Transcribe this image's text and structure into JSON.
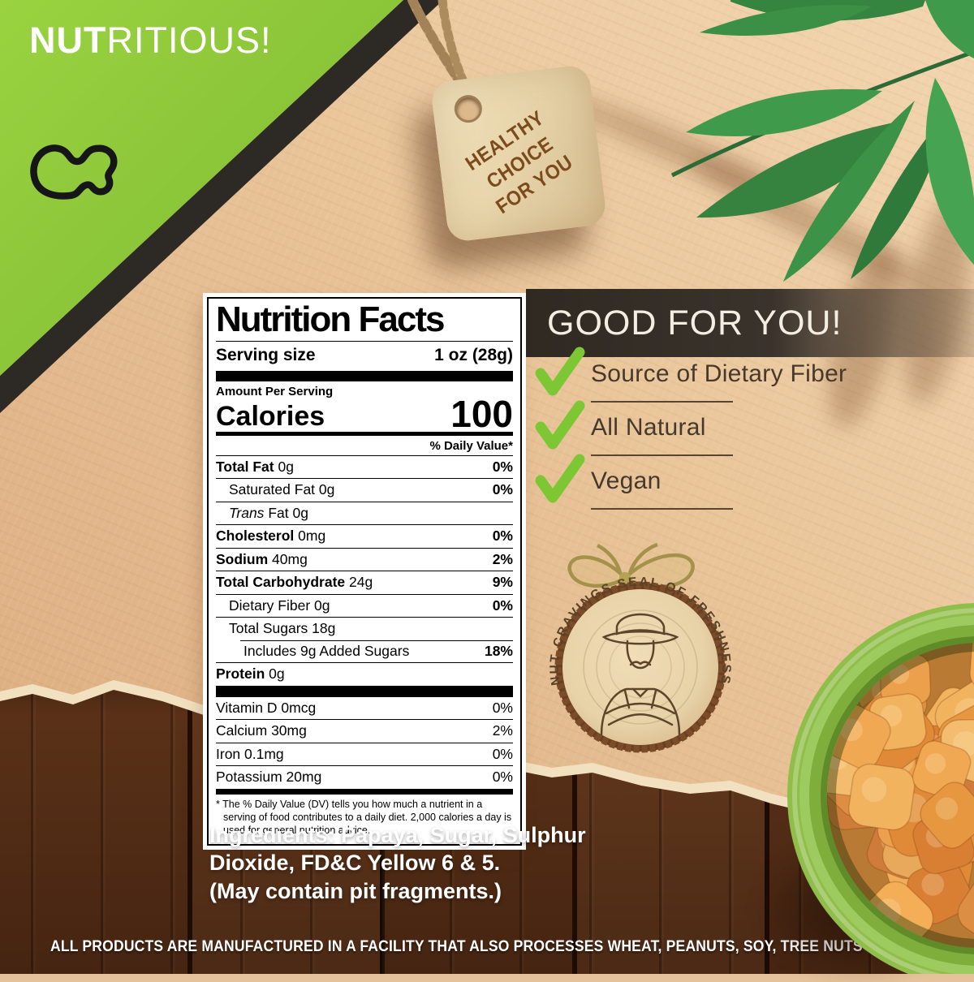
{
  "brand": {
    "headline_bold": "NUT",
    "headline_rest": "RITIOUS!",
    "logo": "nut-cravings-squiggle-logo"
  },
  "hang_tag": {
    "line1": "HEALTHY CHOICE",
    "line2": "FOR YOU"
  },
  "nutrition_label": {
    "title": "Nutrition Facts",
    "serving_size_label": "Serving size",
    "serving_size_value": "1 oz (28g)",
    "amount_per_serving": "Amount Per Serving",
    "calories_label": "Calories",
    "calories_value": "100",
    "daily_value_header": "% Daily Value*",
    "rows": [
      {
        "name": "Total Fat",
        "amount": "0g",
        "dv": "0%",
        "bold": true,
        "indent": 0
      },
      {
        "name": "Saturated Fat",
        "amount": "0g",
        "dv": "0%",
        "bold": false,
        "indent": 1
      },
      {
        "name": "Fat",
        "amount": "0g",
        "dv": "",
        "bold": false,
        "indent": 1,
        "italic_prefix": "Trans"
      },
      {
        "name": "Cholesterol",
        "amount": "0mg",
        "dv": "0%",
        "bold": true,
        "indent": 0
      },
      {
        "name": "Sodium",
        "amount": "40mg",
        "dv": "2%",
        "bold": true,
        "indent": 0
      },
      {
        "name": "Total Carbohydrate",
        "amount": "24g",
        "dv": "9%",
        "bold": true,
        "indent": 0
      },
      {
        "name": "Dietary Fiber",
        "amount": "0g",
        "dv": "0%",
        "bold": false,
        "indent": 1
      },
      {
        "name": "Total Sugars",
        "amount": "18g",
        "dv": "",
        "bold": false,
        "indent": 1
      },
      {
        "name": "Includes 9g Added Sugars",
        "amount": "",
        "dv": "18%",
        "bold": false,
        "indent": 2,
        "partial_rule": true
      },
      {
        "name": "Protein",
        "amount": "0g",
        "dv": "",
        "bold": true,
        "indent": 0
      }
    ],
    "vitamins": [
      {
        "name": "Vitamin D",
        "amount": "0mcg",
        "dv": "0%"
      },
      {
        "name": "Calcium",
        "amount": "30mg",
        "dv": "2%"
      },
      {
        "name": "Iron",
        "amount": "0.1mg",
        "dv": "0%"
      },
      {
        "name": "Potassium",
        "amount": "20mg",
        "dv": "0%"
      }
    ],
    "footnote": "* The % Daily Value (DV) tells you how much a nutrient in a serving of food contributes to a daily diet. 2,000 calories a day is used for general nutrition advice."
  },
  "good_for_you": {
    "title": "GOOD FOR YOU!",
    "items": [
      "Source of Dietary Fiber",
      "All Natural",
      "Vegan"
    ]
  },
  "seal": {
    "text": "NUT CRAVINGS SEAL OF FRESHNESS"
  },
  "ingredients": {
    "line1": "Ingredients: Papaya, Sugar, Sulphur",
    "line2": "Dioxide, FD&C Yellow 6 & 5.",
    "line3": "(May contain pit fragments.)"
  },
  "disclaimer": "ALL PRODUCTS ARE MANUFACTURED IN A FACILITY THAT ALSO PROCESSES WHEAT, PEANUTS, SOY, TREE NUTS",
  "colors": {
    "accent_green": "#8cc63e",
    "check_green": "#7cc733",
    "paper_tan": "#e6c29a",
    "banner_dark": "#332d27",
    "tag_brown_text": "#7b4a1d",
    "wood_brown": "#4e2b17",
    "chunk_colors": [
      "#eda04b",
      "#e08a38",
      "#f2b35f",
      "#d97f33",
      "#f0a852",
      "#e6973f",
      "#dd8e45",
      "#f4bc6e",
      "#cf7c3a",
      "#e9a95d",
      "#f3ae57",
      "#e29142"
    ]
  }
}
